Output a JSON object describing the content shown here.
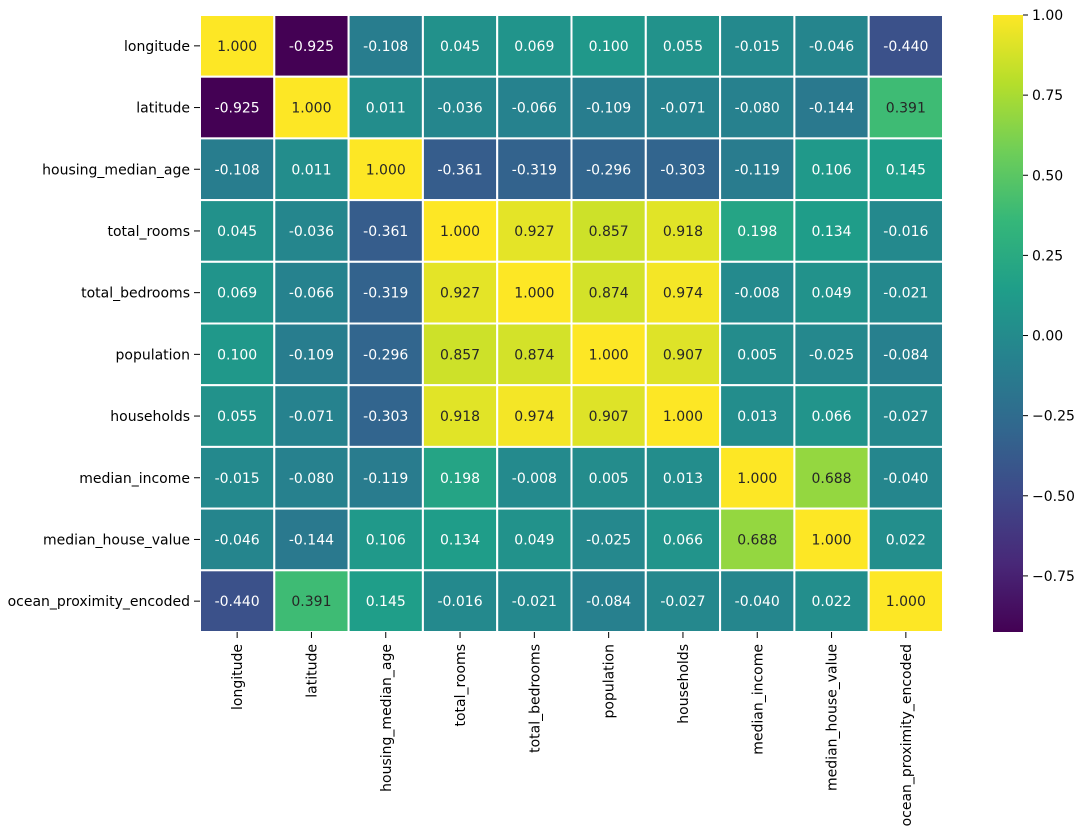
{
  "chart_data": {
    "type": "heatmap",
    "title": "",
    "xlabel": "",
    "ylabel": "",
    "labels": [
      "longitude",
      "latitude",
      "housing_median_age",
      "total_rooms",
      "total_bedrooms",
      "population",
      "households",
      "median_income",
      "median_house_value",
      "ocean_proximity_encoded"
    ],
    "matrix": [
      [
        1.0,
        -0.925,
        -0.108,
        0.045,
        0.069,
        0.1,
        0.055,
        -0.015,
        -0.046,
        -0.44
      ],
      [
        -0.925,
        1.0,
        0.011,
        -0.036,
        -0.066,
        -0.109,
        -0.071,
        -0.08,
        -0.144,
        0.391
      ],
      [
        -0.108,
        0.011,
        1.0,
        -0.361,
        -0.319,
        -0.296,
        -0.303,
        -0.119,
        0.106,
        0.145
      ],
      [
        0.045,
        -0.036,
        -0.361,
        1.0,
        0.927,
        0.857,
        0.918,
        0.198,
        0.134,
        -0.016
      ],
      [
        0.069,
        -0.066,
        -0.319,
        0.927,
        1.0,
        0.874,
        0.974,
        -0.008,
        0.049,
        -0.021
      ],
      [
        0.1,
        -0.109,
        -0.296,
        0.857,
        0.874,
        1.0,
        0.907,
        0.005,
        -0.025,
        -0.084
      ],
      [
        0.055,
        -0.071,
        -0.303,
        0.918,
        0.974,
        0.907,
        1.0,
        0.013,
        0.066,
        -0.027
      ],
      [
        -0.015,
        -0.08,
        -0.119,
        0.198,
        -0.008,
        0.005,
        0.013,
        1.0,
        0.688,
        -0.04
      ],
      [
        -0.046,
        -0.144,
        0.106,
        0.134,
        0.049,
        -0.025,
        0.066,
        0.688,
        1.0,
        0.022
      ],
      [
        -0.44,
        0.391,
        0.145,
        -0.016,
        -0.021,
        -0.084,
        -0.027,
        -0.04,
        0.022,
        1.0
      ]
    ],
    "value_format": "0.000",
    "vmin": -0.925,
    "vmax": 1.0,
    "colormap": "viridis",
    "colorbar": {
      "ticks": [
        "1.00",
        "0.75",
        "0.50",
        "0.25",
        "0.00",
        "−0.25",
        "−0.50",
        "−0.75"
      ],
      "tick_values": [
        1.0,
        0.75,
        0.5,
        0.25,
        0.0,
        -0.25,
        -0.5,
        -0.75
      ],
      "placement": "right"
    },
    "colors": {
      "cell_border": "#ffffff",
      "text_light": "#ffffff",
      "text_dark": "#262626",
      "viridis_stops": [
        "#440154",
        "#482878",
        "#3e4989",
        "#31688e",
        "#26828e",
        "#1f9e89",
        "#35b779",
        "#6ece58",
        "#b5de2b",
        "#fde725"
      ]
    }
  }
}
